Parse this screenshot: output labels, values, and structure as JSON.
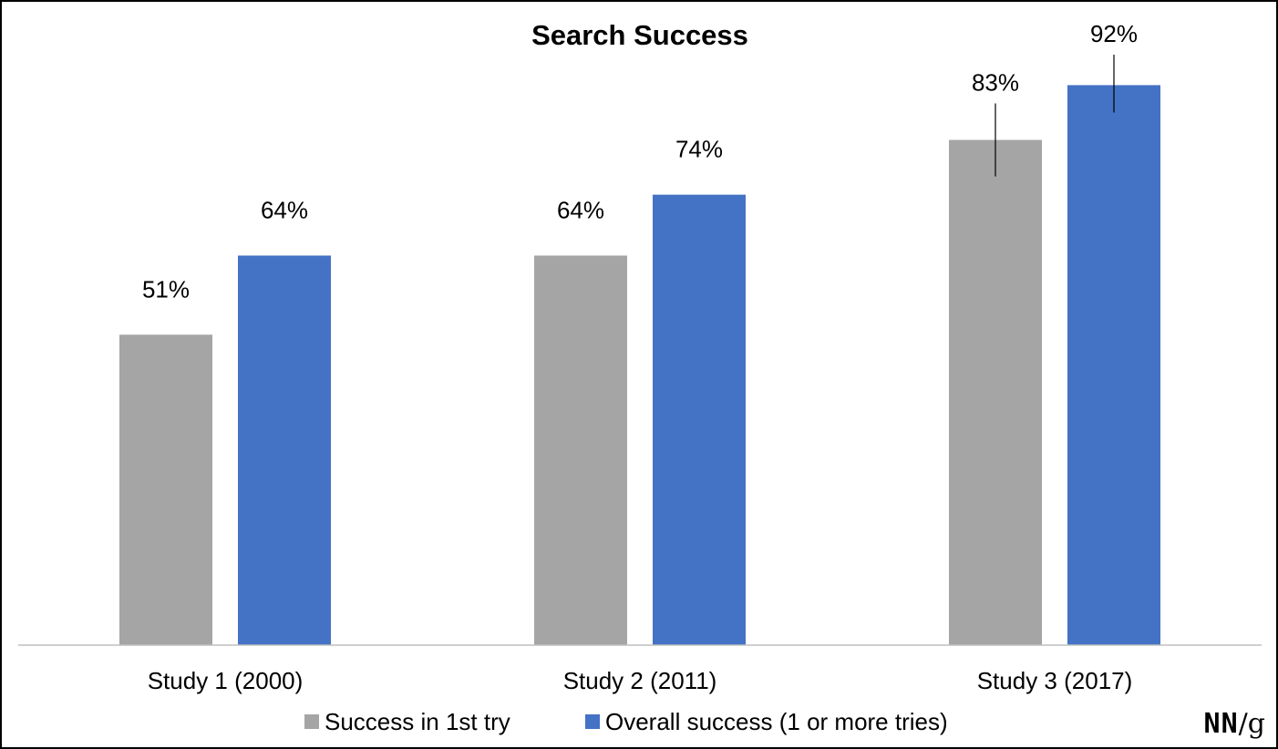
{
  "logo": {
    "text": "NN/g"
  },
  "colors": {
    "first_try": "#a5a5a5",
    "overall": "#4472c4",
    "axis": "#bfbfbf",
    "error_bar": "#000000"
  },
  "chart_data": {
    "type": "bar",
    "title": "Search Success",
    "xlabel": "",
    "ylabel": "",
    "ylim": [
      0,
      100
    ],
    "grid": false,
    "legend_position": "bottom",
    "categories": [
      "Study 1 (2000)",
      "Study 2 (2011)",
      "Study 3 (2017)"
    ],
    "series": [
      {
        "name": "Success in 1st try",
        "color": "#a5a5a5",
        "values": [
          51,
          64,
          83
        ],
        "labels": [
          "51%",
          "64%",
          "83%"
        ]
      },
      {
        "name": "Overall success (1 or more tries)",
        "color": "#4472c4",
        "values": [
          64,
          74,
          92
        ],
        "labels": [
          "64%",
          "74%",
          "92%"
        ]
      }
    ],
    "error_bars": [
      {
        "category": "Study 3 (2017)",
        "series": "Success in 1st try",
        "low": 77,
        "high": 89
      },
      {
        "category": "Study 3 (2017)",
        "series": "Overall success (1 or more tries)",
        "low": 87.5,
        "high": 97
      }
    ]
  }
}
